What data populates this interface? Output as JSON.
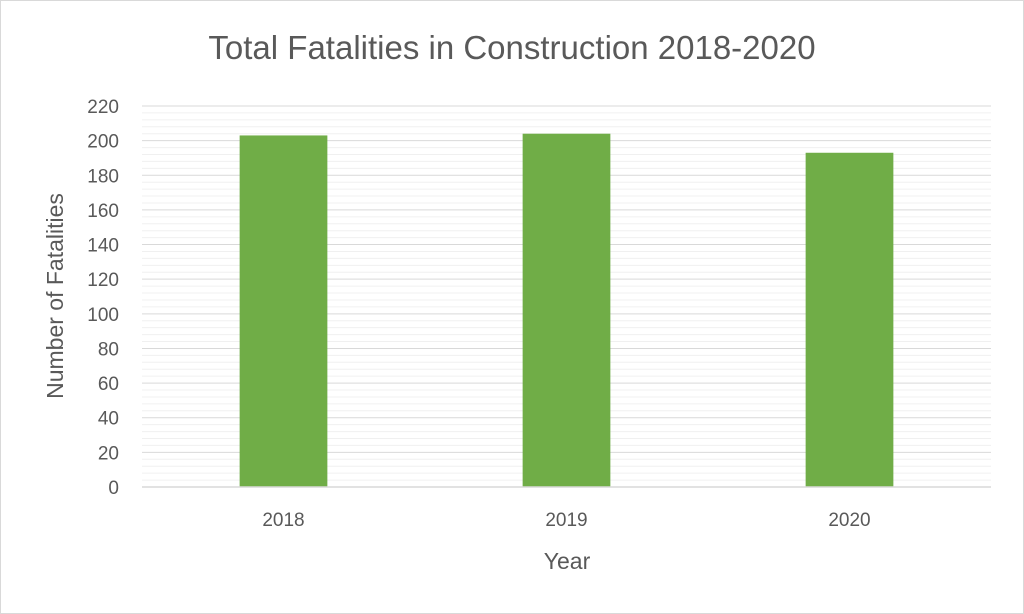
{
  "chart_data": {
    "type": "bar",
    "title": "Total Fatalities in Construction 2018-2020",
    "xlabel": "Year",
    "ylabel": "Number of Fatalities",
    "categories": [
      "2018",
      "2019",
      "2020"
    ],
    "values": [
      203,
      204,
      193
    ],
    "ylim": [
      0,
      220
    ],
    "yticks": [
      0,
      20,
      40,
      60,
      80,
      100,
      120,
      140,
      160,
      180,
      200,
      220
    ],
    "grid": true,
    "legend": "none",
    "bar_color": "#70AD47",
    "gridline_color": "#d9d9d9"
  }
}
